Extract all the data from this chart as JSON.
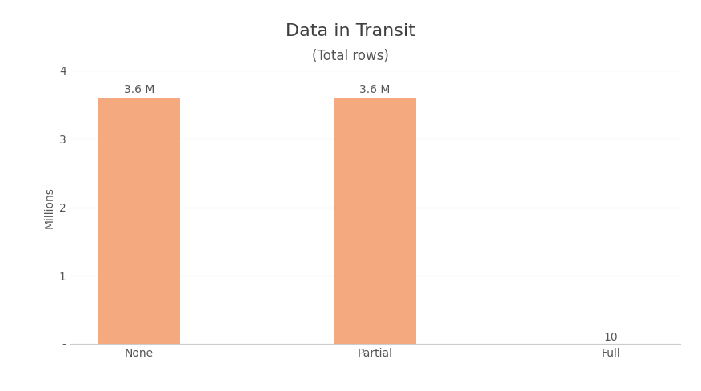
{
  "title": "Data in Transit",
  "subtitle": "(Total rows)",
  "categories": [
    "None",
    "Partial",
    "Full"
  ],
  "values": [
    3600000,
    3600000,
    10
  ],
  "bar_color": "#F4A97E",
  "bar_labels": [
    "3.6 M",
    "3.6 M",
    "10"
  ],
  "ylabel": "Millions",
  "ylim": [
    0,
    4000000
  ],
  "yticks": [
    0,
    1000000,
    2000000,
    3000000,
    4000000
  ],
  "ytick_labels": [
    "-",
    "1",
    "2",
    "3",
    "4"
  ],
  "background_color": "#ffffff",
  "title_fontsize": 16,
  "subtitle_fontsize": 12,
  "label_fontsize": 10,
  "tick_fontsize": 10,
  "ylabel_fontsize": 10,
  "bar_width": 0.35,
  "figsize": [
    8.76,
    4.88
  ],
  "dpi": 100
}
